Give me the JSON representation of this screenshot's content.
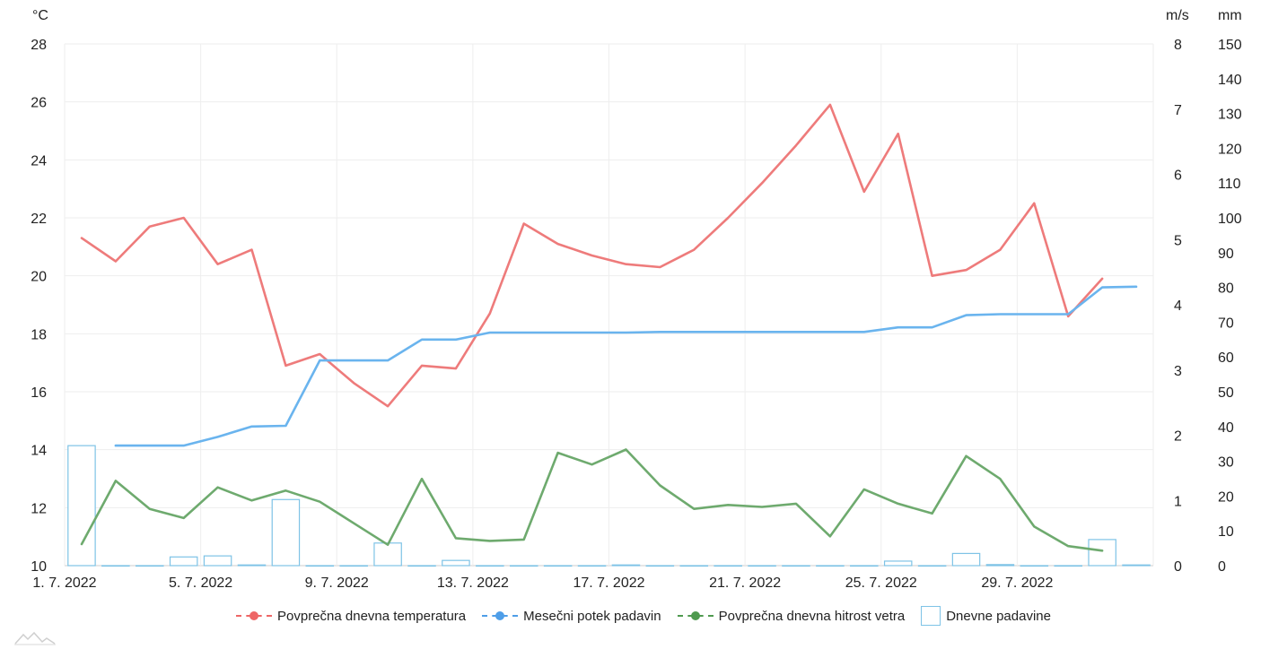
{
  "chart_data": {
    "type": "line",
    "x": [
      "1. 7. 2022",
      "2. 7. 2022",
      "3. 7. 2022",
      "4. 7. 2022",
      "5. 7. 2022",
      "6. 7. 2022",
      "7. 7. 2022",
      "8. 7. 2022",
      "9. 7. 2022",
      "10. 7. 2022",
      "11. 7. 2022",
      "12. 7. 2022",
      "13. 7. 2022",
      "14. 7. 2022",
      "15. 7. 2022",
      "16. 7. 2022",
      "17. 7. 2022",
      "18. 7. 2022",
      "19. 7. 2022",
      "20. 7. 2022",
      "21. 7. 2022",
      "22. 7. 2022",
      "23. 7. 2022",
      "24. 7. 2022",
      "25. 7. 2022",
      "26. 7. 2022",
      "27. 7. 2022",
      "28. 7. 2022",
      "29. 7. 2022",
      "30. 7. 2022",
      "31. 7. 2022",
      "1. 8. 2022"
    ],
    "x_ticks": [
      "1. 7. 2022",
      "5. 7. 2022",
      "9. 7. 2022",
      "13. 7. 2022",
      "17. 7. 2022",
      "21. 7. 2022",
      "25. 7. 2022",
      "29. 7. 2022"
    ],
    "axes": {
      "temp": {
        "unit": "°C",
        "min": 10,
        "max": 28,
        "step": 2,
        "position": "left"
      },
      "wind": {
        "unit": "m/s",
        "min": 0,
        "max": 8,
        "step": 1,
        "position": "right"
      },
      "rain": {
        "unit": "mm",
        "min": 0,
        "max": 150,
        "step": 10,
        "position": "right-outer"
      }
    },
    "series": [
      {
        "name": "Povprečna dnevna temperatura",
        "axis": "temp",
        "kind": "line",
        "color": "#ee7b7b",
        "values": [
          21.3,
          20.5,
          21.7,
          22.0,
          20.4,
          20.9,
          16.9,
          17.3,
          16.3,
          15.5,
          16.9,
          16.8,
          18.7,
          21.8,
          21.1,
          20.7,
          20.4,
          20.3,
          20.9,
          22.0,
          23.2,
          24.5,
          25.9,
          22.9,
          24.9,
          20.0,
          20.2,
          20.9,
          22.5,
          18.6,
          19.9,
          null
        ]
      },
      {
        "name": "Mesečni potek padavin",
        "axis": "rain",
        "kind": "line",
        "color": "#6ab4ee",
        "values": [
          null,
          34.5,
          34.5,
          34.5,
          37,
          40,
          40.2,
          59,
          59,
          59,
          65,
          65,
          67,
          67,
          67,
          67,
          67,
          67.2,
          67.2,
          67.2,
          67.2,
          67.2,
          67.2,
          67.2,
          68.5,
          68.5,
          72,
          72.3,
          72.3,
          72.3,
          80,
          80.2
        ]
      },
      {
        "name": "Povprečna dnevna hitrost vetra",
        "axis": "wind",
        "kind": "line",
        "color": "#6eaa6e",
        "values": [
          0.33,
          1.3,
          0.87,
          0.73,
          1.2,
          1.0,
          1.15,
          0.98,
          0.65,
          0.32,
          1.33,
          0.42,
          0.38,
          0.4,
          1.73,
          1.55,
          1.78,
          1.23,
          0.87,
          0.93,
          0.9,
          0.95,
          0.45,
          1.17,
          0.95,
          0.8,
          1.68,
          1.33,
          0.6,
          0.3,
          0.23,
          null
        ]
      },
      {
        "name": "Dnevne padavine",
        "axis": "rain",
        "kind": "bar",
        "color": "#7ec3e6",
        "values": [
          34.5,
          0,
          0,
          2.5,
          2.8,
          0.2,
          19,
          0,
          0,
          6.5,
          0,
          1.5,
          0,
          0,
          0,
          0,
          0.2,
          0,
          0,
          0,
          0,
          0,
          0,
          0,
          1.3,
          0,
          3.5,
          0.3,
          0,
          0,
          7.5,
          0.2
        ]
      }
    ]
  }
}
